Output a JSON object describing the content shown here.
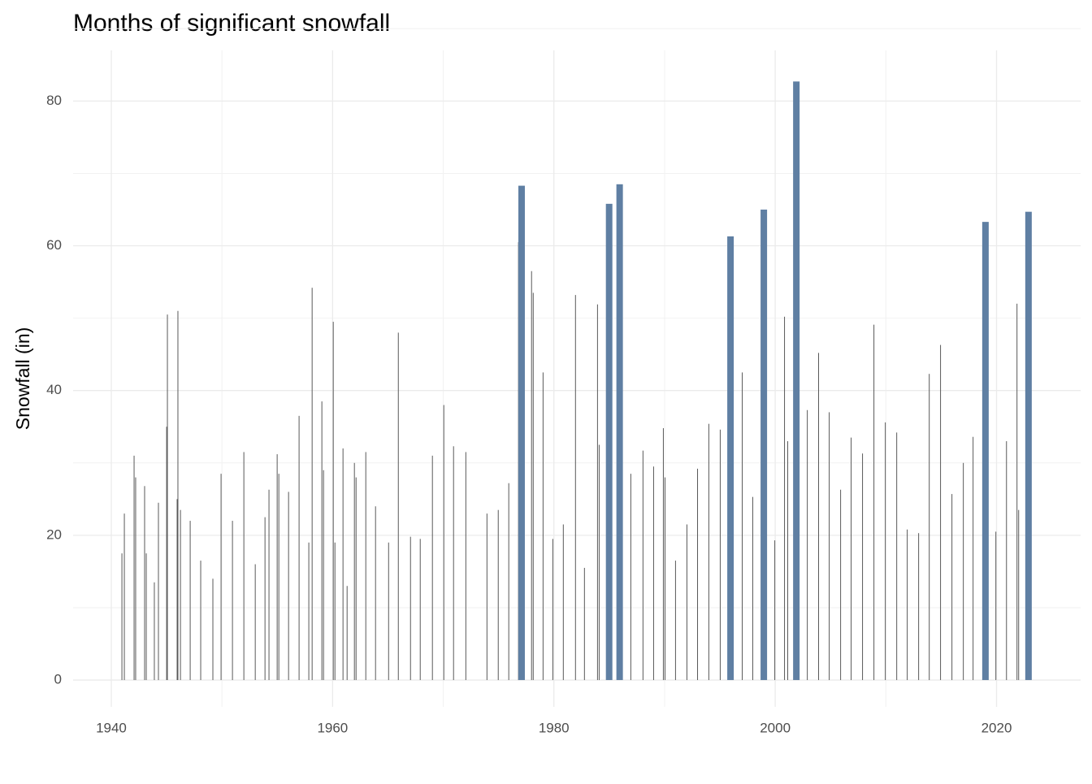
{
  "chart_data": {
    "type": "bar",
    "title": "Months of significant snowfall",
    "y_label": "Snowfall (in)",
    "xlim": [
      1936.55,
      2027.6
    ],
    "ylim": [
      -3.7,
      87
    ],
    "xticks": [
      1940,
      1960,
      1980,
      2000,
      2020
    ],
    "yticks": [
      0,
      20,
      40,
      60,
      80
    ],
    "grid": true,
    "series": [
      {
        "color": "#595959",
        "x": [
          1940.96,
          1941.18,
          1942.06,
          1942.2,
          1943.01,
          1943.16,
          1943.89,
          1944.26,
          1945.0,
          1945.07,
          1945.95,
          1946.02,
          1946.25,
          1947.13,
          1948.08,
          1949.18,
          1949.92,
          1950.95,
          1951.98,
          1953.01,
          1953.89,
          1954.25,
          1954.99,
          1955.14,
          1956.02,
          1956.97,
          1957.85,
          1958.15,
          1959.03,
          1959.18,
          1960.06,
          1960.21,
          1960.94,
          1961.31,
          1961.97,
          1962.12,
          1963.0,
          1963.88,
          1965.06,
          1965.94,
          1967.04,
          1967.92,
          1969.02,
          1970.05,
          1970.93,
          1972.04,
          1973.95,
          1974.97,
          1975.92,
          1976.8,
          1977.98,
          1978.13,
          1979.02,
          1979.9,
          1980.85,
          1981.95,
          1982.76,
          1983.94,
          1984.09,
          1986.95,
          1988.05,
          1989.01,
          1989.89,
          1990.04,
          1990.99,
          1992.02,
          1992.98,
          1994.0,
          1995.03,
          1997.02,
          1997.97,
          1999.96,
          2000.84,
          2001.13,
          2002.9,
          2003.92,
          2004.88,
          2005.91,
          2006.86,
          2007.89,
          2008.92,
          2009.95,
          2010.98,
          2011.93,
          2012.96,
          2013.92,
          2014.94,
          2015.97,
          2017.0,
          2017.88,
          2019.94,
          2020.9,
          2021.85,
          2022.0
        ],
        "values": [
          17.5,
          23,
          31,
          28,
          26.8,
          17.5,
          13.5,
          24.5,
          35,
          50.5,
          25,
          51,
          23.5,
          22,
          16.5,
          14,
          28.5,
          22,
          31.5,
          16,
          22.5,
          26.3,
          31.2,
          28.5,
          26,
          36.5,
          19,
          54.2,
          38.5,
          29,
          49.5,
          19,
          32,
          13,
          30,
          28,
          31.5,
          24,
          19,
          48,
          19.8,
          19.5,
          31,
          38,
          32.3,
          31.5,
          23,
          23.5,
          27.2,
          60.5,
          56.5,
          53.5,
          42.5,
          19.5,
          21.5,
          53.2,
          15.5,
          51.9,
          32.5,
          28.5,
          31.7,
          29.5,
          34.8,
          28,
          16.5,
          21.5,
          29.2,
          35.4,
          34.6,
          42.5,
          25.3,
          19.3,
          50.2,
          33,
          37.3,
          45.2,
          37,
          26.3,
          33.5,
          31.3,
          49.1,
          35.6,
          34.2,
          20.8,
          20.3,
          42.3,
          46.3,
          25.7,
          30,
          33.6,
          20.5,
          33,
          52,
          23.5
        ]
      },
      {
        "color": "#5F7FA3",
        "x": [
          1977.08,
          1984.99,
          1985.94,
          1995.96,
          1998.97,
          2001.91,
          2019.0,
          2022.89
        ],
        "values": [
          68.3,
          65.8,
          68.5,
          61.3,
          65,
          82.7,
          63.3,
          64.7
        ]
      }
    ]
  }
}
